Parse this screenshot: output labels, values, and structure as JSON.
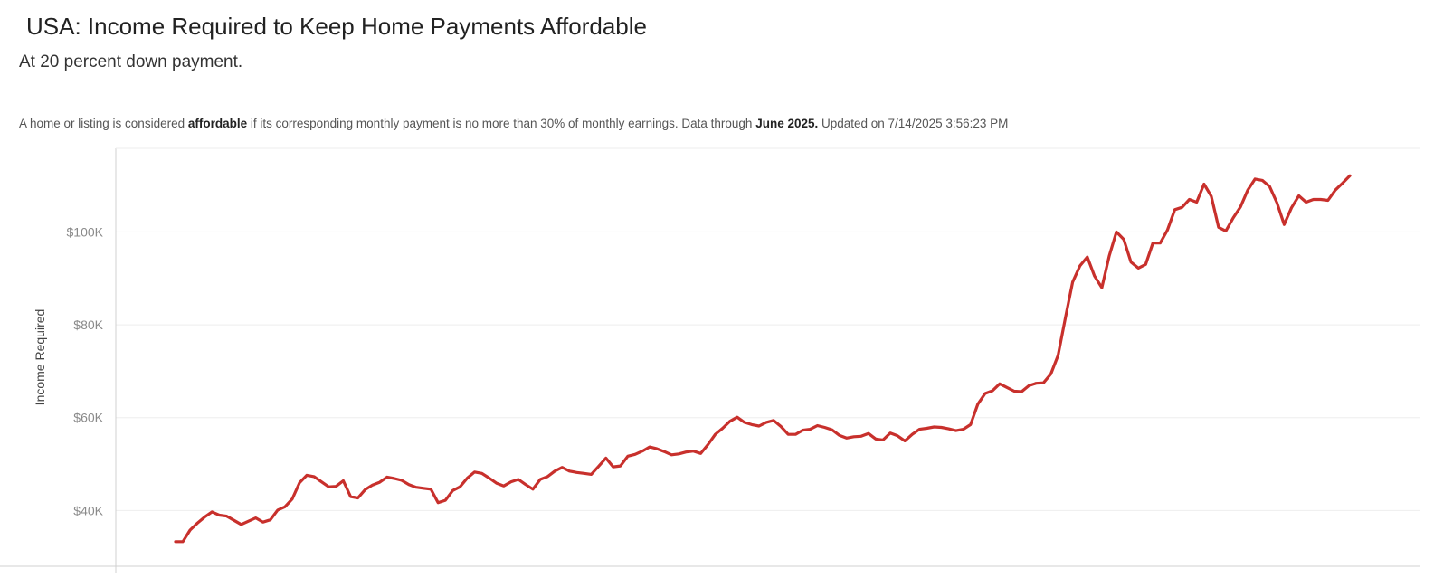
{
  "header": {
    "title": "USA: Income Required to Keep Home Payments Affordable",
    "subtitle": "At 20 percent down payment.",
    "note_parts": {
      "p1": "A home or listing is considered ",
      "b1": "affordable",
      "p2": " if its corresponding monthly payment is no more than 30% of monthly earnings. Data through ",
      "b2": "June 2025.",
      "p3": " Updated on 7/14/2025 3:56:23 PM"
    }
  },
  "colors": {
    "line": "#c8302c",
    "grid": "#eeeeee",
    "axis": "#d0d0d0",
    "tick_label": "#8a8a8a",
    "axis_label": "#444444"
  },
  "chart_data": {
    "type": "line",
    "title": "USA: Income Required to Keep Home Payments Affordable",
    "subtitle": "At 20 percent down payment.",
    "xlabel": "",
    "ylabel": "Income Required",
    "ylim": [
      28000,
      118000
    ],
    "yticks": [
      40000,
      60000,
      80000,
      100000
    ],
    "ytick_labels": [
      "$40K",
      "$60K",
      "$80K",
      "$100K"
    ],
    "grid": true,
    "legend": "none",
    "x_start": "2012-01",
    "x_end": "2025-06",
    "x_frequency": "monthly",
    "series": [
      {
        "values": [
          33300,
          33300,
          35800,
          37300,
          38600,
          39700,
          39000,
          38800,
          37900,
          37000,
          37700,
          38400,
          37500,
          38000,
          40100,
          40800,
          42500,
          46000,
          47600,
          47300,
          46200,
          45100,
          45200,
          46400,
          43000,
          42700,
          44500,
          45500,
          46100,
          47200,
          46900,
          46500,
          45600,
          45000,
          44800,
          44600,
          41700,
          42200,
          44300,
          45100,
          47000,
          48300,
          48000,
          47000,
          45900,
          45300,
          46200,
          46700,
          45600,
          44600,
          46700,
          47300,
          48500,
          49300,
          48500,
          48200,
          48000,
          47800,
          49500,
          51300,
          49400,
          49600,
          51700,
          52100,
          52800,
          53700,
          53300,
          52700,
          52000,
          52200,
          52600,
          52800,
          52300,
          54200,
          56400,
          57700,
          59200,
          60100,
          59000,
          58500,
          58200,
          59000,
          59400,
          58100,
          56400,
          56400,
          57300,
          57500,
          58300,
          57900,
          57400,
          56200,
          55600,
          55900,
          56000,
          56600,
          55400,
          55200,
          56700,
          56100,
          55000,
          56400,
          57500,
          57700,
          58000,
          57900,
          57600,
          57200,
          57500,
          58500,
          62900,
          65200,
          65800,
          67300,
          66500,
          65700,
          65600,
          66900,
          67400,
          67500,
          69400,
          73400,
          81500,
          89200,
          92700,
          94600,
          90500,
          88000,
          94800,
          100000,
          98400,
          93500,
          92200,
          93000,
          97600,
          97600,
          100400,
          104800,
          105300,
          107000,
          106400,
          110300,
          107700,
          101000,
          100200,
          103000,
          105400,
          109000,
          111400,
          111100,
          109800,
          106300,
          101600,
          105200,
          107800,
          106400,
          107000,
          107000,
          106800,
          109000,
          110500,
          112100
        ]
      }
    ]
  }
}
